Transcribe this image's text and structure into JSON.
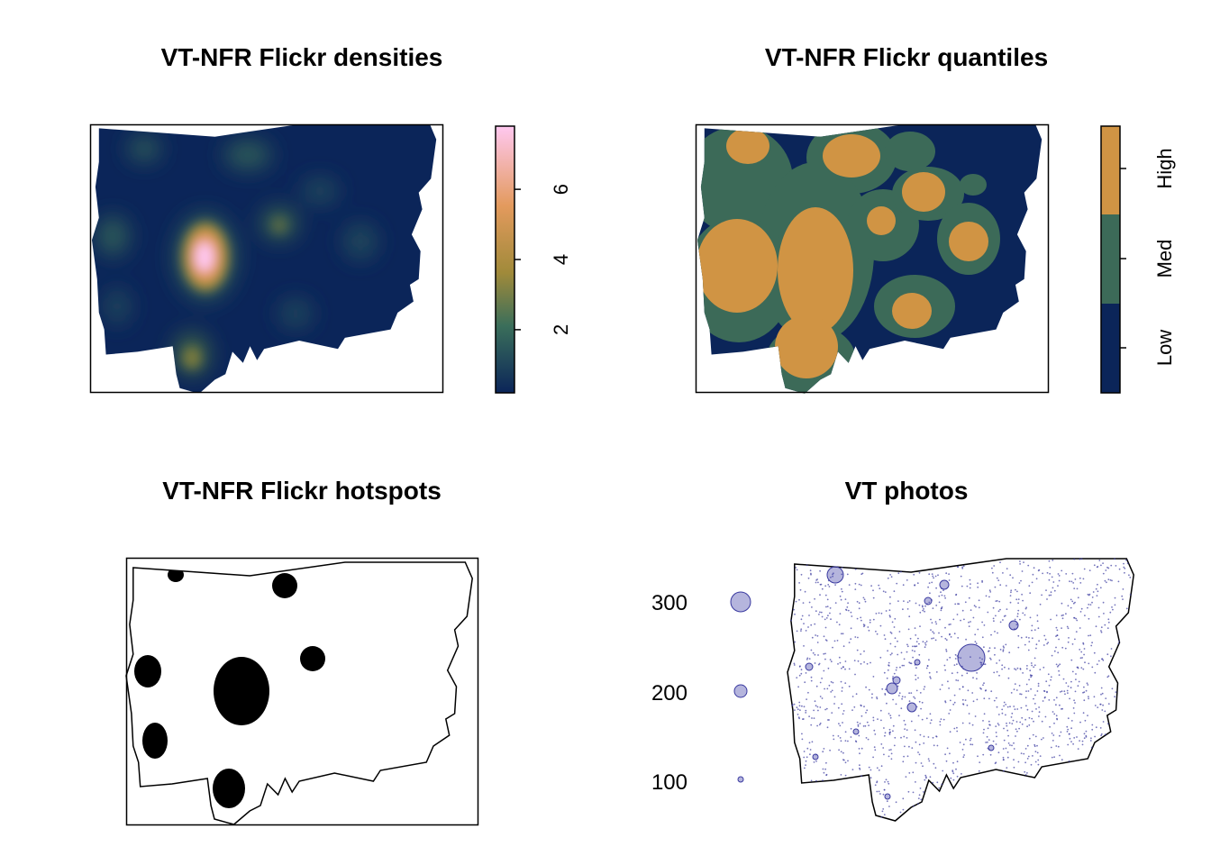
{
  "panels": {
    "densities": {
      "title": "VT-NFR Flickr densities"
    },
    "quantiles": {
      "title": "VT-NFR Flickr quantiles"
    },
    "hotspots": {
      "title": "VT-NFR Flickr hotspots"
    },
    "photos": {
      "title": "VT photos"
    }
  },
  "chart_data": [
    {
      "type": "heatmap",
      "title": "VT-NFR Flickr densities",
      "colorbar": {
        "ticks": [
          2,
          4,
          6
        ],
        "range": [
          0.2,
          7.8
        ]
      },
      "colors": {
        "low": "#0b2559",
        "mid": "#3a6e5a",
        "gold": "#a08a3a",
        "orange": "#e39a5d",
        "high": "#ffc8f0"
      }
    },
    {
      "type": "heatmap",
      "title": "VT-NFR Flickr quantiles",
      "categories": [
        "Low",
        "Med",
        "High"
      ],
      "colors": {
        "Low": "#0b2559",
        "Med": "#3c6a58",
        "High": "#d09444"
      }
    },
    {
      "type": "heatmap",
      "title": "VT-NFR Flickr hotspots",
      "colors": {
        "hotspot": "#000000",
        "background": "#ffffff"
      }
    },
    {
      "type": "scatter",
      "title": "VT photos",
      "size_legend": [
        300,
        200,
        100
      ],
      "colors": {
        "point_fill": "rgba(70,70,170,0.4)",
        "point_stroke": "#3a3aa0"
      }
    }
  ]
}
